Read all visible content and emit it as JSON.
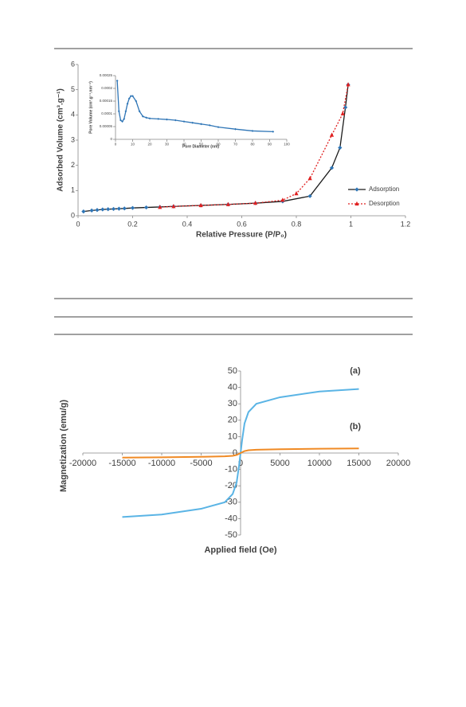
{
  "chart_data": [
    {
      "type": "line",
      "x_label": "Relative Pressure (P/P₀)",
      "y_label": "Adsorbed Volume (cm³.g⁻¹)",
      "xlim": [
        0,
        1.2
      ],
      "ylim": [
        0,
        6
      ],
      "xticks": [
        0,
        0.2,
        0.4,
        0.6,
        0.8,
        1,
        1.2
      ],
      "yticks": [
        0,
        1,
        2,
        3,
        4,
        5,
        6
      ],
      "legend": "right",
      "series": [
        {
          "name": "Adsorption",
          "color": "#2e75b6",
          "line_color": "#1a1a1a",
          "linestyle": "solid",
          "marker": "diamond",
          "x": [
            0.02,
            0.05,
            0.07,
            0.09,
            0.11,
            0.13,
            0.15,
            0.17,
            0.2,
            0.25,
            0.3,
            0.35,
            0.45,
            0.55,
            0.65,
            0.75,
            0.85,
            0.93,
            0.96,
            0.98,
            0.99
          ],
          "values": [
            0.17,
            0.21,
            0.23,
            0.25,
            0.26,
            0.27,
            0.28,
            0.29,
            0.31,
            0.33,
            0.35,
            0.37,
            0.41,
            0.45,
            0.5,
            0.57,
            0.78,
            1.9,
            2.7,
            4.3,
            5.2
          ]
        },
        {
          "name": "Desorption",
          "color": "#e02020",
          "line_color": "#e02020",
          "linestyle": "dotted",
          "marker": "triangle",
          "x": [
            0.3,
            0.35,
            0.45,
            0.55,
            0.65,
            0.75,
            0.8,
            0.85,
            0.93,
            0.97,
            0.99
          ],
          "values": [
            0.34,
            0.37,
            0.41,
            0.45,
            0.5,
            0.62,
            0.88,
            1.48,
            3.2,
            4.05,
            5.2
          ]
        }
      ]
    },
    {
      "type": "line",
      "x_label": "Pore Diameter (nm)",
      "y_label": "Pore Volume (cm³.g⁻¹.nm⁻¹)",
      "xlim": [
        0,
        100
      ],
      "ylim": [
        0,
        0.00025
      ],
      "xticks": [
        0,
        10,
        20,
        30,
        40,
        50,
        60,
        70,
        80,
        90,
        100
      ],
      "yticks": [
        0,
        5e-05,
        0.0001,
        0.00015,
        0.0002,
        0.00025
      ],
      "series": [
        {
          "color": "#2e75b6",
          "line_color": "#2e75b6",
          "linestyle": "solid",
          "marker": "diamond",
          "x": [
            1,
            2,
            3,
            4,
            5,
            6,
            7,
            8,
            9,
            10,
            12,
            14,
            16,
            18,
            20,
            25,
            30,
            35,
            40,
            45,
            50,
            55,
            60,
            70,
            80,
            92
          ],
          "values": [
            0.00023,
            0.00011,
            7.5e-05,
            7e-05,
            8e-05,
            0.00011,
            0.00014,
            0.00016,
            0.00017,
            0.00017,
            0.00015,
            0.00011,
            9e-05,
            8.5e-05,
            8.2e-05,
            8e-05,
            7.8e-05,
            7.5e-05,
            7e-05,
            6.5e-05,
            6e-05,
            5.5e-05,
            4.8e-05,
            4e-05,
            3.3e-05,
            3e-05
          ]
        }
      ]
    },
    {
      "type": "line",
      "x_label": "Applied field (Oe)",
      "y_label": "Magnetization (emu/g)",
      "annotations": [
        "(a)",
        "(b)"
      ],
      "xlim": [
        -20000,
        20000
      ],
      "ylim": [
        -50,
        50
      ],
      "xticks": [
        -20000,
        -15000,
        -10000,
        -5000,
        0,
        5000,
        10000,
        15000,
        20000
      ],
      "yticks": [
        -50,
        -40,
        -30,
        -20,
        -10,
        0,
        10,
        20,
        30,
        40,
        50
      ],
      "axes_at_origin": true,
      "series": [
        {
          "color": "#5ab4e5",
          "line_color": "#5ab4e5",
          "linestyle": "solid",
          "x": [
            -15000,
            -10000,
            -5000,
            -2000,
            -1000,
            -500,
            -200,
            0,
            200,
            500,
            1000,
            2000,
            5000,
            10000,
            15000
          ],
          "values": [
            -39,
            -37.5,
            -34,
            -30,
            -25,
            -18,
            -8,
            0,
            8,
            18,
            25,
            30,
            34,
            37.5,
            39
          ]
        },
        {
          "color": "#f08a24",
          "line_color": "#f08a24",
          "linestyle": "solid",
          "x": [
            -15000,
            -10000,
            -5000,
            -2000,
            -1000,
            -500,
            -200,
            0,
            200,
            500,
            1000,
            2000,
            5000,
            10000,
            15000
          ],
          "values": [
            -2.8,
            -2.6,
            -2.3,
            -2,
            -1.7,
            -1.2,
            -0.5,
            0,
            0.5,
            1.2,
            1.7,
            2,
            2.3,
            2.6,
            2.8
          ]
        }
      ]
    }
  ]
}
